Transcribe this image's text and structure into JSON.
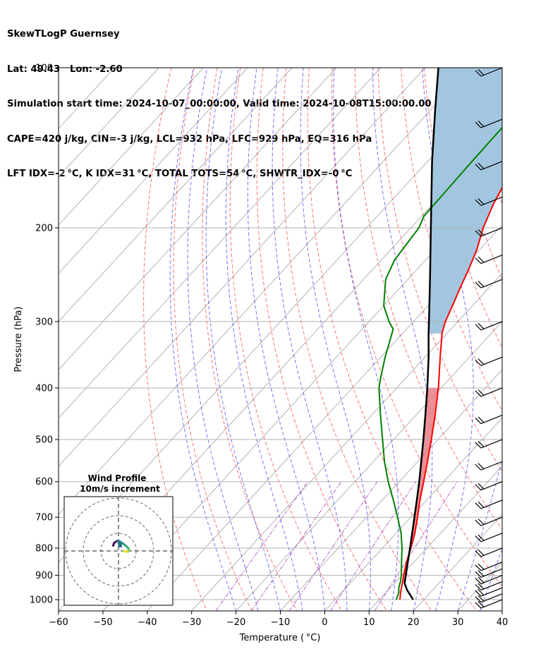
{
  "header": {
    "line1": "SkewTLogP Guernsey",
    "line2": "Lat: 49.43   Lon: -2.60",
    "line3": "Simulation start time: 2024-10-07_00:00:00, Valid time: 2024-10-08T15:00:00.00",
    "line4": "CAPE=420 j/kg, CIN=-3 j/kg, LCL=932 hPa, LFC=929 hPa, EQ=316 hPa",
    "line5": "LFT IDX=-2 °C, K IDX=31 °C, TOTAL TOTS=54 °C, SHWTR_IDX=-0 °C"
  },
  "chart_data": {
    "type": "skew-t",
    "xlabel": "Temperature ( °C)",
    "ylabel": "Pressure (hPa)",
    "xlim": [
      -60,
      40
    ],
    "ylim": [
      1050,
      100
    ],
    "y_scale": "log",
    "x_ticks": [
      "−60",
      "−50",
      "−40",
      "−30",
      "−20",
      "−10",
      "0",
      "10",
      "20",
      "30",
      "40"
    ],
    "y_ticks": [
      "100",
      "200",
      "300",
      "400",
      "500",
      "600",
      "700",
      "800",
      "900",
      "1000"
    ],
    "temperature": {
      "color": "#ff0000",
      "points": [
        [
          1000,
          14.6
        ],
        [
          990,
          14.2
        ],
        [
          970,
          13.3
        ],
        [
          950,
          12.5
        ],
        [
          925,
          11.5
        ],
        [
          900,
          10.4
        ],
        [
          850,
          8.3
        ],
        [
          800,
          6.4
        ],
        [
          750,
          4.2
        ],
        [
          700,
          1.5
        ],
        [
          650,
          -1.5
        ],
        [
          600,
          -4.5
        ],
        [
          550,
          -7.8
        ],
        [
          500,
          -11.5
        ],
        [
          450,
          -15.7
        ],
        [
          400,
          -20.6
        ],
        [
          350,
          -26.6
        ],
        [
          320,
          -30.5
        ],
        [
          316,
          -31.1
        ],
        [
          300,
          -32.8
        ],
        [
          280,
          -34.5
        ],
        [
          260,
          -36.4
        ],
        [
          240,
          -38.3
        ],
        [
          220,
          -40.6
        ],
        [
          200,
          -43.7
        ],
        [
          180,
          -46.4
        ],
        [
          160,
          -48.7
        ],
        [
          140,
          -51.3
        ],
        [
          120,
          -53.3
        ],
        [
          100,
          -56.0
        ]
      ]
    },
    "dewpoint": {
      "color": "#008000",
      "points": [
        [
          1000,
          13.8
        ],
        [
          990,
          13.5
        ],
        [
          970,
          12.9
        ],
        [
          950,
          11.9
        ],
        [
          925,
          11.0
        ],
        [
          900,
          9.9
        ],
        [
          850,
          7.2
        ],
        [
          800,
          4.4
        ],
        [
          750,
          1.1
        ],
        [
          700,
          -3.0
        ],
        [
          650,
          -7.5
        ],
        [
          600,
          -12.5
        ],
        [
          550,
          -17.5
        ],
        [
          500,
          -22.5
        ],
        [
          450,
          -28.0
        ],
        [
          400,
          -34.0
        ],
        [
          380,
          -36.0
        ],
        [
          350,
          -39.0
        ],
        [
          310,
          -43.0
        ],
        [
          300,
          -45.5
        ],
        [
          280,
          -50.0
        ],
        [
          250,
          -55.0
        ],
        [
          230,
          -57.0
        ],
        [
          200,
          -58.2
        ],
        [
          190,
          -59.5
        ],
        [
          150,
          -60.0
        ],
        [
          130,
          -60.2
        ],
        [
          100,
          -62.5
        ]
      ]
    },
    "parcel": {
      "color": "#000000",
      "points": [
        [
          1000,
          17.6
        ],
        [
          960,
          14.3
        ],
        [
          932,
          12.3
        ],
        [
          900,
          10.9
        ],
        [
          850,
          8.6
        ],
        [
          800,
          6.2
        ],
        [
          750,
          3.6
        ],
        [
          700,
          0.8
        ],
        [
          650,
          -2.2
        ],
        [
          600,
          -5.5
        ],
        [
          550,
          -9.2
        ],
        [
          500,
          -13.3
        ],
        [
          450,
          -17.9
        ],
        [
          400,
          -23.1
        ],
        [
          350,
          -29.2
        ],
        [
          316,
          -34.1
        ],
        [
          300,
          -36.5
        ],
        [
          250,
          -45.0
        ],
        [
          200,
          -55.5
        ],
        [
          150,
          -69.0
        ],
        [
          120,
          -79.0
        ],
        [
          100,
          -87.0
        ]
      ]
    },
    "shading": {
      "cape_color": "#e87c84",
      "cape_region": [
        400,
        930
      ],
      "upper_region_color": "#a3c6e0",
      "upper_region": [
        100,
        316
      ]
    },
    "reference_lines": {
      "isotherms": "grey solid",
      "dry_adiabats": "red dashed",
      "moist_adiabats": "blue dashed",
      "mixing_ratio": "purple dashdot"
    },
    "wind_barbs_pressures": [
      1000,
      975,
      950,
      925,
      900,
      875,
      850,
      800,
      750,
      700,
      650,
      600,
      550,
      500,
      450,
      400,
      350,
      300,
      250,
      225,
      200,
      175,
      150,
      125,
      100
    ],
    "inset": {
      "title_line1": "Wind Profile",
      "title_line2": "10m/s increment",
      "hodograph": [
        [
          -3.0,
          3.0
        ],
        [
          -2.5,
          4.5
        ],
        [
          -1.0,
          5.6
        ],
        [
          0.5,
          5.3
        ],
        [
          1.2,
          4.0
        ],
        [
          1.4,
          2.7
        ],
        [
          0.4,
          2.6
        ],
        [
          0.0,
          5.8
        ],
        [
          2.0,
          4.6
        ],
        [
          4.0,
          3.1
        ],
        [
          5.5,
          1.7
        ],
        [
          6.0,
          0.4
        ],
        [
          5.4,
          -0.3
        ],
        [
          4.8,
          -0.2
        ],
        [
          5.1,
          0.0
        ],
        [
          4.0,
          -0.6
        ],
        [
          3.5,
          -0.2
        ]
      ]
    }
  }
}
